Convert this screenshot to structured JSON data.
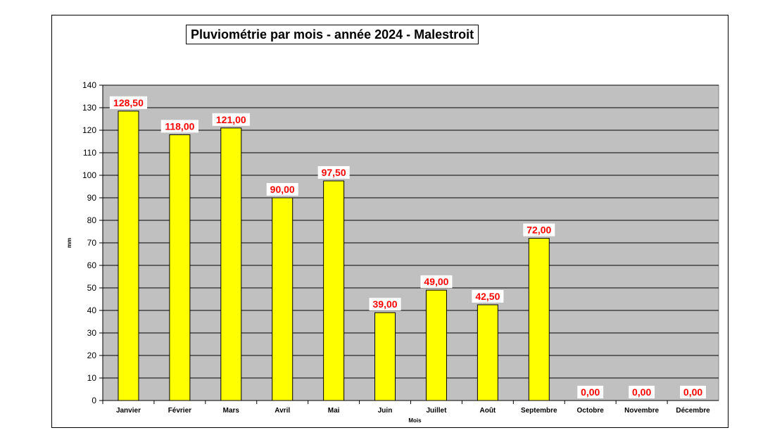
{
  "chart_data": {
    "type": "bar",
    "title": "Pluviométrie par mois - année 2024 - Malestroit",
    "xlabel": "Mois",
    "ylabel": "mm",
    "ylim": [
      0,
      140
    ],
    "ytick_step": 10,
    "yticks": [
      "0",
      "10",
      "20",
      "30",
      "40",
      "50",
      "60",
      "70",
      "80",
      "90",
      "100",
      "110",
      "120",
      "130",
      "140"
    ],
    "grid": true,
    "legend": "none",
    "categories": [
      "Janvier",
      "Février",
      "Mars",
      "Avril",
      "Mai",
      "Juin",
      "Juillet",
      "Août",
      "Septembre",
      "Octobre",
      "Novembre",
      "Décembre"
    ],
    "values": [
      128.5,
      118,
      121,
      90,
      97.5,
      39,
      49,
      42.5,
      72,
      0,
      0,
      0
    ],
    "data_labels": [
      "128,50",
      "118,00",
      "121,00",
      "90,00",
      "97,50",
      "39,00",
      "49,00",
      "42,50",
      "72,00",
      "0,00",
      "0,00",
      "0,00"
    ],
    "colors": {
      "bar_fill": "#ffff00",
      "bar_stroke": "#000000",
      "plot_background": "#c0c0c0",
      "gridline": "#000000",
      "data_label_text": "#ff0000",
      "data_label_background": "#ffffff"
    }
  }
}
